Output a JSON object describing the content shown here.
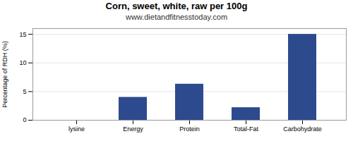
{
  "chart_data": {
    "type": "bar",
    "title": "Corn, sweet, white, raw per 100g",
    "subtitle": "www.dietandfitnesstoday.com",
    "categories": [
      "lysine",
      "Energy",
      "Protein",
      "Total-Fat",
      "Carbohydrate"
    ],
    "values": [
      0.0,
      4.0,
      6.3,
      2.2,
      15.0
    ],
    "color": "#2e4a8e",
    "ylabel": "Percentage of RDH (%)",
    "ylim": [
      0,
      16
    ],
    "yticks": [
      0,
      5,
      10,
      15
    ],
    "grid": true
  }
}
